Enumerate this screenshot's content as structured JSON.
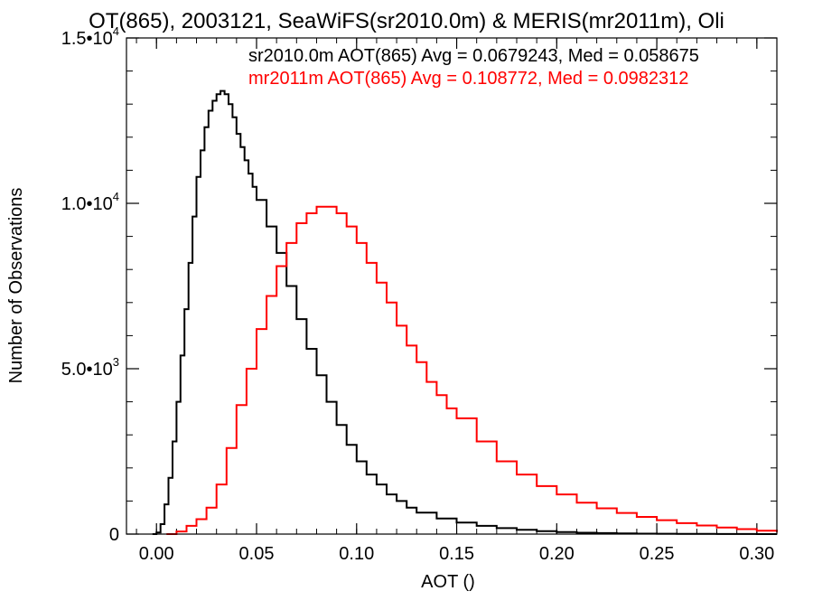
{
  "chart_data": {
    "type": "line",
    "title": "OT(865), 2003121, SeaWiFS(sr2010.0m) & MERIS(mr2011m), Oli",
    "xlabel": "AOT ()",
    "ylabel": "Number of Observations",
    "xlim": [
      -0.015,
      0.31
    ],
    "ylim": [
      0,
      15000
    ],
    "xticks": [
      {
        "value": 0.0,
        "label": "0.00"
      },
      {
        "value": 0.05,
        "label": "0.05"
      },
      {
        "value": 0.1,
        "label": "0.10"
      },
      {
        "value": 0.15,
        "label": "0.15"
      },
      {
        "value": 0.2,
        "label": "0.20"
      },
      {
        "value": 0.25,
        "label": "0.25"
      },
      {
        "value": 0.3,
        "label": "0.30"
      }
    ],
    "yticks": [
      {
        "value": 0,
        "label": "0"
      },
      {
        "value": 5000,
        "label": "5.0•10",
        "exp": "3"
      },
      {
        "value": 10000,
        "label": "1.0•10",
        "exp": "4"
      },
      {
        "value": 15000,
        "label": "1.5•10",
        "exp": "4"
      }
    ],
    "x_minor_step": 0.01,
    "y_minor_step": 1000,
    "line_style": "step",
    "series": [
      {
        "name": "sr2010.0m",
        "color": "#000000",
        "stats_label": "sr2010.0m AOT(865) Avg = 0.0679243, Med = 0.058675",
        "x": [
          -0.002,
          0.0,
          0.002,
          0.004,
          0.006,
          0.008,
          0.01,
          0.012,
          0.014,
          0.016,
          0.018,
          0.02,
          0.022,
          0.024,
          0.026,
          0.028,
          0.03,
          0.032,
          0.034,
          0.036,
          0.038,
          0.04,
          0.042,
          0.044,
          0.046,
          0.048,
          0.05,
          0.055,
          0.06,
          0.065,
          0.07,
          0.075,
          0.08,
          0.085,
          0.09,
          0.095,
          0.1,
          0.105,
          0.11,
          0.115,
          0.12,
          0.125,
          0.13,
          0.14,
          0.15,
          0.16,
          0.17,
          0.18,
          0.19,
          0.2,
          0.21,
          0.22,
          0.23,
          0.24,
          0.25,
          0.26,
          0.27,
          0.28,
          0.29,
          0.3,
          0.31
        ],
        "y": [
          0,
          50,
          300,
          900,
          1700,
          2800,
          4000,
          5400,
          6800,
          8200,
          9600,
          10800,
          11600,
          12300,
          12800,
          13100,
          13300,
          13400,
          13300,
          13000,
          12600,
          12100,
          11700,
          11300,
          10900,
          10500,
          10100,
          9300,
          8500,
          7500,
          6500,
          5600,
          4800,
          4000,
          3300,
          2700,
          2200,
          1800,
          1500,
          1200,
          1000,
          800,
          650,
          470,
          350,
          250,
          180,
          130,
          90,
          60,
          40,
          30,
          20,
          15,
          10,
          7,
          5,
          3,
          2,
          1,
          0
        ]
      },
      {
        "name": "mr2011m",
        "color": "#ff0000",
        "stats_label": "mr2011m AOT(865) Avg = 0.108772, Med = 0.0982312",
        "x": [
          0.005,
          0.01,
          0.015,
          0.02,
          0.025,
          0.03,
          0.035,
          0.04,
          0.045,
          0.05,
          0.055,
          0.06,
          0.065,
          0.07,
          0.075,
          0.08,
          0.085,
          0.09,
          0.095,
          0.1,
          0.105,
          0.11,
          0.115,
          0.12,
          0.125,
          0.13,
          0.135,
          0.14,
          0.145,
          0.15,
          0.16,
          0.17,
          0.18,
          0.19,
          0.2,
          0.21,
          0.22,
          0.23,
          0.24,
          0.25,
          0.26,
          0.27,
          0.28,
          0.29,
          0.3,
          0.31
        ],
        "y": [
          0,
          80,
          250,
          450,
          800,
          1500,
          2600,
          3900,
          5000,
          6200,
          7200,
          8100,
          8800,
          9400,
          9700,
          9900,
          9900,
          9700,
          9300,
          8800,
          8200,
          7600,
          7000,
          6300,
          5700,
          5200,
          4600,
          4200,
          3800,
          3500,
          2800,
          2200,
          1800,
          1450,
          1200,
          950,
          780,
          640,
          520,
          420,
          330,
          260,
          200,
          150,
          100,
          60
        ]
      }
    ]
  }
}
